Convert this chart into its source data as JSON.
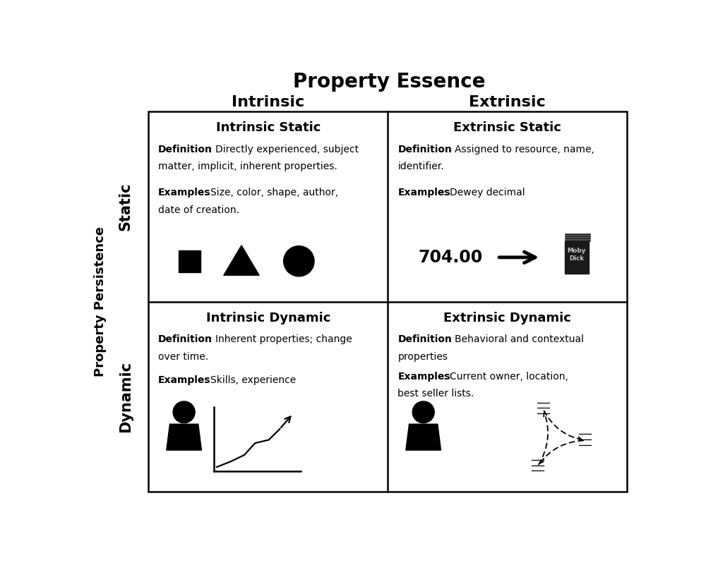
{
  "title": "Property Essence",
  "col_labels": [
    "Intrinsic",
    "Extrinsic"
  ],
  "row_labels": [
    "Static",
    "Dynamic"
  ],
  "y_label": "Property Persistence",
  "cells": {
    "intrinsic_static": {
      "title": "Intrinsic Static",
      "def_bold": "Definition",
      "def_rest": ": Directly experienced, subject\nmatter, implicit, inherent properties.",
      "ex_bold": "Examples",
      "ex_rest": ": Size, color, shape, author,\ndate of creation."
    },
    "extrinsic_static": {
      "title": "Extrinsic Static",
      "def_bold": "Definition",
      "def_rest": ": Assigned to resource, name,\nidentifier.",
      "ex_bold": "Examples",
      "ex_rest": ": Dewey decimal"
    },
    "intrinsic_dynamic": {
      "title": "Intrinsic Dynamic",
      "def_bold": "Definition",
      "def_rest": ": Inherent properties; change\nover time.",
      "ex_bold": "Examples",
      "ex_rest": ": Skills, experience"
    },
    "extrinsic_dynamic": {
      "title": "Extrinsic Dynamic",
      "def_bold": "Definition",
      "def_rest": ": Behavioral and contextual\nproperties",
      "ex_bold": "Examples",
      "ex_rest": ": Current owner, location,\nbest seller lists."
    }
  },
  "bg_color": "#ffffff",
  "text_color": "#000000",
  "border_color": "#000000",
  "grid_lw": 1.8,
  "title_fontsize": 20,
  "col_label_fontsize": 16,
  "row_label_fontsize": 15,
  "ypersist_fontsize": 13,
  "cell_title_fontsize": 13,
  "body_fontsize": 10
}
